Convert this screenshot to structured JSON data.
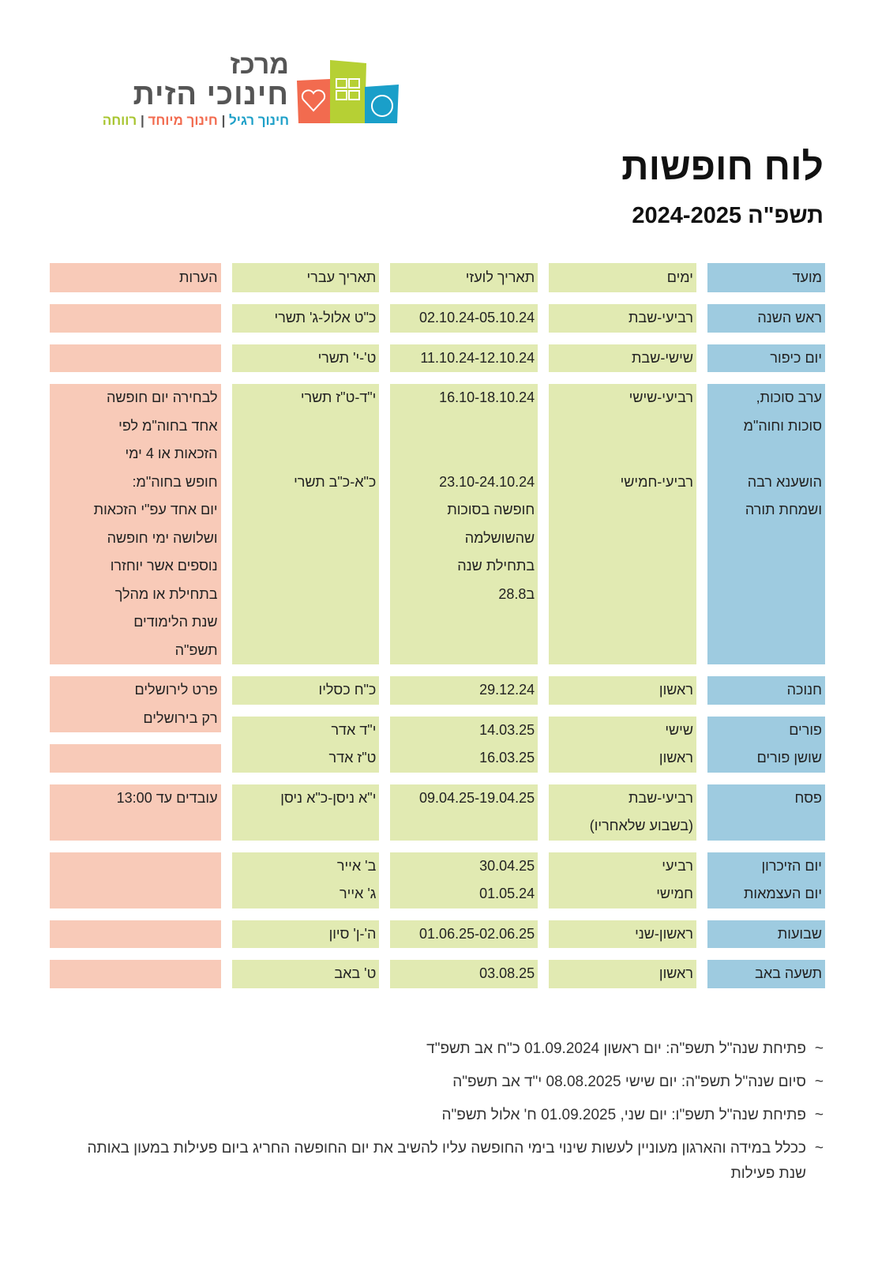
{
  "logo": {
    "line1": "מרכז",
    "line2": "חינוכי הזית",
    "tagline": [
      {
        "text": "חינוך רגיל",
        "color": "#1ea0c8"
      },
      {
        "text": "חינוך מיוחד",
        "color": "#f26b4f"
      },
      {
        "text": "רווחה",
        "color": "#a8c530"
      }
    ],
    "separator": " | "
  },
  "title": "לוח חופשות",
  "subtitle": "תשפ\"ה 2024-2025",
  "colors": {
    "blue": "#9ecbe0",
    "green": "#e1eab2",
    "pink": "#f8cab8"
  },
  "table": {
    "columns": [
      {
        "key": "event",
        "color": "blue",
        "header": "מועד",
        "cells": [
          [
            "ראש השנה"
          ],
          [
            "יום כיפור"
          ],
          [
            "ערב סוכות,",
            "סוכות וחוה\"מ",
            "",
            "הושענא רבה",
            "ושמחת תורה",
            "",
            "",
            "",
            "",
            ""
          ],
          [
            "חנוכה"
          ],
          [
            "פורים",
            "שושן פורים"
          ],
          [
            "פסח",
            ""
          ],
          [
            "יום הזיכרון",
            "יום העצמאות"
          ],
          [
            "שבועות"
          ],
          [
            "תשעה באב"
          ]
        ]
      },
      {
        "key": "days",
        "color": "green",
        "header": "ימים",
        "cells": [
          [
            "רביעי-שבת"
          ],
          [
            "שישי-שבת"
          ],
          [
            "רביעי-שישי",
            "",
            "",
            "רביעי-חמישי",
            "",
            "",
            "",
            "",
            "",
            ""
          ],
          [
            "ראשון"
          ],
          [
            "שישי",
            "ראשון"
          ],
          [
            "רביעי-שבת",
            "(בשבוע שלאחריו)"
          ],
          [
            "רביעי",
            "חמישי"
          ],
          [
            "ראשון-שני"
          ],
          [
            "ראשון"
          ]
        ]
      },
      {
        "key": "gregorian",
        "color": "green",
        "header": "תאריך לועזי",
        "cells": [
          [
            "02.10.24-05.10.24"
          ],
          [
            "11.10.24-12.10.24"
          ],
          [
            "16.10-18.10.24",
            "",
            "",
            "23.10-24.10.24",
            "חופשה בסוכות",
            "שהשושלמה",
            "בתחילת שנה",
            "ב28.8",
            "",
            ""
          ],
          [
            "29.12.24"
          ],
          [
            "14.03.25",
            "16.03.25"
          ],
          [
            "09.04.25-19.04.25",
            ""
          ],
          [
            "30.04.25",
            "01.05.24"
          ],
          [
            "01.06.25-02.06.25"
          ],
          [
            "03.08.25"
          ]
        ]
      },
      {
        "key": "hebrew",
        "color": "green",
        "header": "תאריך עברי",
        "cells": [
          [
            "כ\"ט אלול-ג' תשרי"
          ],
          [
            "ט'-י' תשרי"
          ],
          [
            "י\"ד-ט\"ז תשרי",
            "",
            "",
            "כ\"א-כ\"ב תשרי",
            "",
            "",
            "",
            "",
            "",
            ""
          ],
          [
            "כ\"ח כסליו"
          ],
          [
            "י\"ד אדר",
            "ט\"ז אדר"
          ],
          [
            "י\"א ניסן-כ\"א ניסן",
            ""
          ],
          [
            "ב' אייר",
            "ג' אייר"
          ],
          [
            "ה'-ן' סיון"
          ],
          [
            "ט' באב"
          ]
        ]
      },
      {
        "key": "notes",
        "color": "pink",
        "header": "הערות",
        "cells": [
          [
            ""
          ],
          [
            ""
          ],
          [
            "לבחירה יום חופשה",
            "אחד בחוה\"מ לפי",
            "הזכאות או 4 ימי",
            "חופש בחוה\"מ:",
            "יום אחד עפ\"י הזכאות",
            "ושלושה ימי חופשה",
            "נוספים אשר יוחזרו",
            "בתחילת או מהלך",
            "שנת הלימודים",
            "תשפ\"ה"
          ],
          [
            "פרט לירושלים",
            "רק בירושלים"
          ],
          [
            ""
          ],
          [
            "עובדים עד 13:00",
            ""
          ],
          [
            "",
            ""
          ],
          [
            ""
          ],
          [
            ""
          ]
        ]
      }
    ]
  },
  "notes": [
    "פתיחת שנה\"ל תשפ\"ה: יום ראשון 01.09.2024 כ\"ח אב תשפ\"ד",
    "סיום שנה\"ל תשפ\"ה: יום שישי 08.08.2025 י\"ד אב תשפ\"ה",
    "פתיחת שנה\"ל תשפ\"ו: יום שני, 01.09.2025 ח' אלול תשפ\"ה",
    "ככלל במידה והארגון מעוניין לעשות שינוי בימי החופשה עליו להשיב את יום החופשה החריג ביום פעילות במעון באותה שנת פעילות"
  ],
  "bullet": "~"
}
